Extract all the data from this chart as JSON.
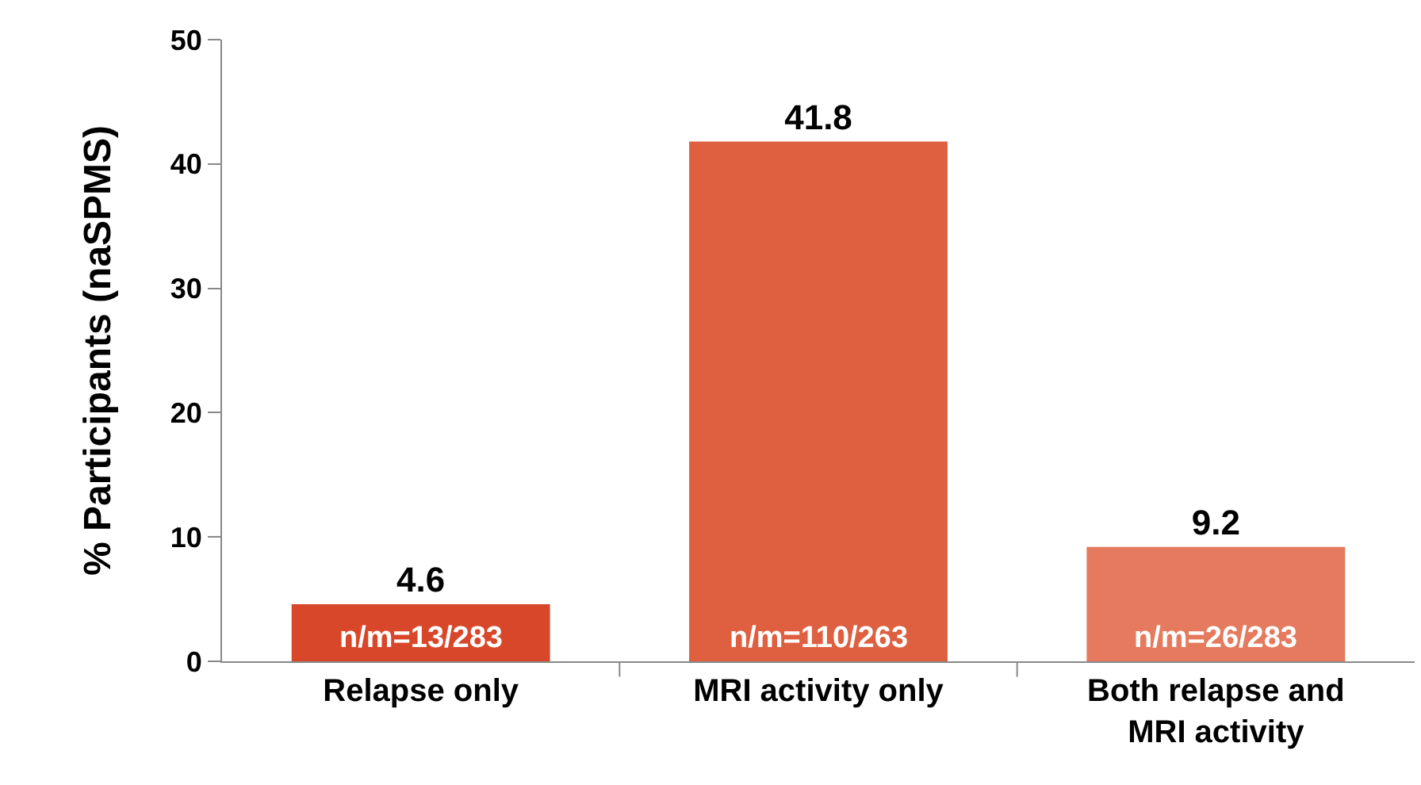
{
  "chart_data": {
    "type": "bar",
    "ylabel": "% Participants (naSPMS)",
    "categories": [
      "Relapse only",
      "MRI activity only",
      "Both relapse and MRI activity"
    ],
    "values": [
      4.6,
      41.8,
      9.2
    ],
    "colors": [
      "#d9472b",
      "#de6040",
      "#e57a5e"
    ],
    "ylim": [
      0,
      50
    ],
    "yticks": [
      0,
      10,
      20,
      30,
      40,
      50
    ],
    "grid": false,
    "data_labels": true,
    "annotations": [
      "n/m=13/283",
      "n/m=110/263",
      "n/m=26/283"
    ]
  }
}
